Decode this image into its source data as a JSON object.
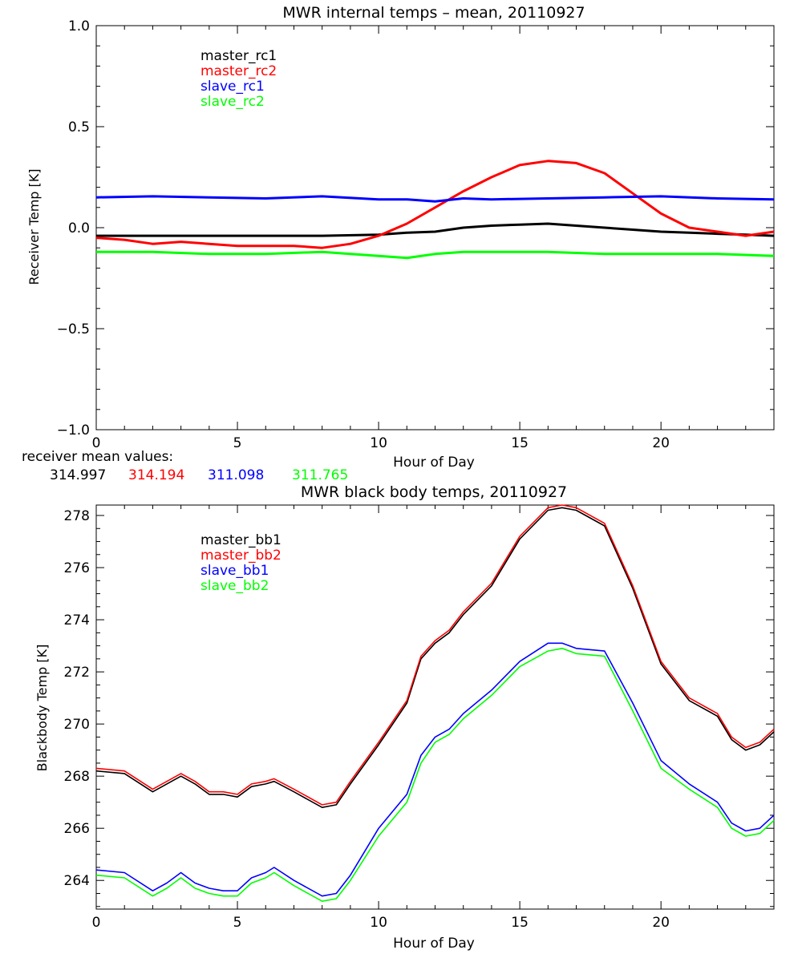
{
  "chart_data": [
    {
      "type": "line",
      "title": "MWR internal temps – mean, 20110927",
      "xlabel": "Hour of Day",
      "ylabel": "Receiver Temp [K]",
      "xlim": [
        0,
        24
      ],
      "ylim": [
        -1.0,
        1.0
      ],
      "xticks": [
        0,
        5,
        10,
        15,
        20
      ],
      "yticks": [
        -1.0,
        -0.5,
        0.0,
        0.5,
        1.0
      ],
      "ytick_labels": [
        "−1.0",
        "−0.5",
        "0.0",
        "0.5",
        "1.0"
      ],
      "legend_position": "top-left",
      "grid": false,
      "series": [
        {
          "name": "master_rc1",
          "color": "#000000",
          "points": [
            [
              0,
              -0.04
            ],
            [
              2,
              -0.04
            ],
            [
              4,
              -0.04
            ],
            [
              6,
              -0.04
            ],
            [
              8,
              -0.04
            ],
            [
              10,
              -0.035
            ],
            [
              11,
              -0.025
            ],
            [
              12,
              -0.02
            ],
            [
              13,
              0.0
            ],
            [
              14,
              0.01
            ],
            [
              15,
              0.015
            ],
            [
              16,
              0.02
            ],
            [
              17,
              0.01
            ],
            [
              18,
              0.0
            ],
            [
              19,
              -0.01
            ],
            [
              20,
              -0.02
            ],
            [
              21,
              -0.025
            ],
            [
              22,
              -0.03
            ],
            [
              23,
              -0.035
            ],
            [
              24,
              -0.04
            ]
          ]
        },
        {
          "name": "master_rc2",
          "color": "#ff0000",
          "points": [
            [
              0,
              -0.05
            ],
            [
              1,
              -0.06
            ],
            [
              2,
              -0.08
            ],
            [
              3,
              -0.07
            ],
            [
              4,
              -0.08
            ],
            [
              5,
              -0.09
            ],
            [
              6,
              -0.09
            ],
            [
              7,
              -0.09
            ],
            [
              8,
              -0.1
            ],
            [
              9,
              -0.08
            ],
            [
              10,
              -0.04
            ],
            [
              11,
              0.02
            ],
            [
              12,
              0.1
            ],
            [
              13,
              0.18
            ],
            [
              14,
              0.25
            ],
            [
              15,
              0.31
            ],
            [
              16,
              0.33
            ],
            [
              17,
              0.32
            ],
            [
              18,
              0.27
            ],
            [
              19,
              0.17
            ],
            [
              20,
              0.07
            ],
            [
              21,
              0.0
            ],
            [
              22,
              -0.02
            ],
            [
              23,
              -0.04
            ],
            [
              24,
              -0.02
            ]
          ]
        },
        {
          "name": "slave_rc1",
          "color": "#0000ff",
          "points": [
            [
              0,
              0.15
            ],
            [
              2,
              0.155
            ],
            [
              4,
              0.15
            ],
            [
              6,
              0.145
            ],
            [
              8,
              0.155
            ],
            [
              10,
              0.14
            ],
            [
              11,
              0.14
            ],
            [
              12,
              0.13
            ],
            [
              13,
              0.145
            ],
            [
              14,
              0.14
            ],
            [
              16,
              0.145
            ],
            [
              18,
              0.15
            ],
            [
              20,
              0.155
            ],
            [
              22,
              0.145
            ],
            [
              24,
              0.14
            ]
          ]
        },
        {
          "name": "slave_rc2",
          "color": "#00ff00",
          "points": [
            [
              0,
              -0.12
            ],
            [
              2,
              -0.12
            ],
            [
              4,
              -0.13
            ],
            [
              6,
              -0.13
            ],
            [
              8,
              -0.12
            ],
            [
              10,
              -0.14
            ],
            [
              11,
              -0.15
            ],
            [
              12,
              -0.13
            ],
            [
              13,
              -0.12
            ],
            [
              14,
              -0.12
            ],
            [
              16,
              -0.12
            ],
            [
              18,
              -0.13
            ],
            [
              20,
              -0.13
            ],
            [
              22,
              -0.13
            ],
            [
              24,
              -0.14
            ]
          ]
        }
      ]
    },
    {
      "type": "line",
      "title": "MWR black body temps, 20110927",
      "xlabel": "Hour of Day",
      "ylabel": "Blackbody Temp [K]",
      "xlim": [
        0,
        24
      ],
      "ylim": [
        262.9,
        278.4
      ],
      "xticks": [
        0,
        5,
        10,
        15,
        20
      ],
      "yticks": [
        264,
        266,
        268,
        270,
        272,
        274,
        276,
        278
      ],
      "legend_position": "top-left",
      "grid": false,
      "series": [
        {
          "name": "master_bb1",
          "color": "#000000",
          "points": [
            [
              0,
              268.2
            ],
            [
              1,
              268.1
            ],
            [
              2,
              267.4
            ],
            [
              2.5,
              267.7
            ],
            [
              3,
              268.0
            ],
            [
              3.5,
              267.7
            ],
            [
              4,
              267.3
            ],
            [
              4.5,
              267.3
            ],
            [
              5,
              267.2
            ],
            [
              5.5,
              267.6
            ],
            [
              6,
              267.7
            ],
            [
              6.3,
              267.8
            ],
            [
              7,
              267.4
            ],
            [
              8,
              266.8
            ],
            [
              8.5,
              266.9
            ],
            [
              9,
              267.7
            ],
            [
              10,
              269.2
            ],
            [
              11,
              270.8
            ],
            [
              11.5,
              272.5
            ],
            [
              12,
              273.1
            ],
            [
              12.5,
              273.5
            ],
            [
              13,
              274.2
            ],
            [
              14,
              275.3
            ],
            [
              15,
              277.1
            ],
            [
              16,
              278.2
            ],
            [
              16.5,
              278.3
            ],
            [
              17,
              278.2
            ],
            [
              18,
              277.6
            ],
            [
              19,
              275.2
            ],
            [
              20,
              272.3
            ],
            [
              21,
              270.9
            ],
            [
              22,
              270.3
            ],
            [
              22.5,
              269.4
            ],
            [
              23,
              269.0
            ],
            [
              23.5,
              269.2
            ],
            [
              24,
              269.7
            ]
          ]
        },
        {
          "name": "master_bb2",
          "color": "#ff0000",
          "points": [
            [
              0,
              268.3
            ],
            [
              1,
              268.2
            ],
            [
              2,
              267.5
            ],
            [
              2.5,
              267.8
            ],
            [
              3,
              268.1
            ],
            [
              3.5,
              267.8
            ],
            [
              4,
              267.4
            ],
            [
              4.5,
              267.4
            ],
            [
              5,
              267.3
            ],
            [
              5.5,
              267.7
            ],
            [
              6,
              267.8
            ],
            [
              6.3,
              267.9
            ],
            [
              7,
              267.5
            ],
            [
              8,
              266.9
            ],
            [
              8.5,
              267.0
            ],
            [
              9,
              267.8
            ],
            [
              10,
              269.3
            ],
            [
              11,
              270.9
            ],
            [
              11.5,
              272.6
            ],
            [
              12,
              273.2
            ],
            [
              12.5,
              273.6
            ],
            [
              13,
              274.3
            ],
            [
              14,
              275.4
            ],
            [
              15,
              277.2
            ],
            [
              16,
              278.3
            ],
            [
              16.5,
              278.4
            ],
            [
              17,
              278.3
            ],
            [
              18,
              277.7
            ],
            [
              19,
              275.3
            ],
            [
              20,
              272.4
            ],
            [
              21,
              271.0
            ],
            [
              22,
              270.4
            ],
            [
              22.5,
              269.5
            ],
            [
              23,
              269.1
            ],
            [
              23.5,
              269.3
            ],
            [
              24,
              269.8
            ]
          ]
        },
        {
          "name": "slave_bb1",
          "color": "#0000ff",
          "points": [
            [
              0,
              264.4
            ],
            [
              1,
              264.3
            ],
            [
              2,
              263.6
            ],
            [
              2.5,
              263.9
            ],
            [
              3,
              264.3
            ],
            [
              3.5,
              263.9
            ],
            [
              4,
              263.7
            ],
            [
              4.5,
              263.6
            ],
            [
              5,
              263.6
            ],
            [
              5.5,
              264.1
            ],
            [
              6,
              264.3
            ],
            [
              6.3,
              264.5
            ],
            [
              7,
              264.0
            ],
            [
              8,
              263.4
            ],
            [
              8.5,
              263.5
            ],
            [
              9,
              264.2
            ],
            [
              10,
              266.0
            ],
            [
              11,
              267.3
            ],
            [
              11.5,
              268.8
            ],
            [
              12,
              269.5
            ],
            [
              12.5,
              269.8
            ],
            [
              13,
              270.4
            ],
            [
              14,
              271.3
            ],
            [
              15,
              272.4
            ],
            [
              16,
              273.1
            ],
            [
              16.5,
              273.1
            ],
            [
              17,
              272.9
            ],
            [
              18,
              272.8
            ],
            [
              19,
              270.8
            ],
            [
              20,
              268.6
            ],
            [
              21,
              267.7
            ],
            [
              22,
              267.0
            ],
            [
              22.5,
              266.2
            ],
            [
              23,
              265.9
            ],
            [
              23.5,
              266.0
            ],
            [
              24,
              266.5
            ]
          ]
        },
        {
          "name": "slave_bb2",
          "color": "#00ff00",
          "points": [
            [
              0,
              264.2
            ],
            [
              1,
              264.1
            ],
            [
              2,
              263.4
            ],
            [
              2.5,
              263.7
            ],
            [
              3,
              264.1
            ],
            [
              3.5,
              263.7
            ],
            [
              4,
              263.5
            ],
            [
              4.5,
              263.4
            ],
            [
              5,
              263.4
            ],
            [
              5.5,
              263.9
            ],
            [
              6,
              264.1
            ],
            [
              6.3,
              264.3
            ],
            [
              7,
              263.8
            ],
            [
              8,
              263.2
            ],
            [
              8.5,
              263.3
            ],
            [
              9,
              264.0
            ],
            [
              10,
              265.7
            ],
            [
              11,
              267.0
            ],
            [
              11.5,
              268.5
            ],
            [
              12,
              269.3
            ],
            [
              12.5,
              269.6
            ],
            [
              13,
              270.2
            ],
            [
              14,
              271.1
            ],
            [
              15,
              272.2
            ],
            [
              16,
              272.8
            ],
            [
              16.5,
              272.9
            ],
            [
              17,
              272.7
            ],
            [
              18,
              272.6
            ],
            [
              19,
              270.5
            ],
            [
              20,
              268.3
            ],
            [
              21,
              267.5
            ],
            [
              22,
              266.8
            ],
            [
              22.5,
              266.0
            ],
            [
              23,
              265.7
            ],
            [
              23.5,
              265.8
            ],
            [
              24,
              266.3
            ]
          ]
        }
      ]
    }
  ],
  "receiver_means": {
    "label": "receiver mean values:",
    "values": [
      {
        "text": "314.997",
        "color": "#000000"
      },
      {
        "text": "314.194",
        "color": "#ff0000"
      },
      {
        "text": "311.098",
        "color": "#0000ff"
      },
      {
        "text": "311.765",
        "color": "#00ff00"
      }
    ]
  }
}
